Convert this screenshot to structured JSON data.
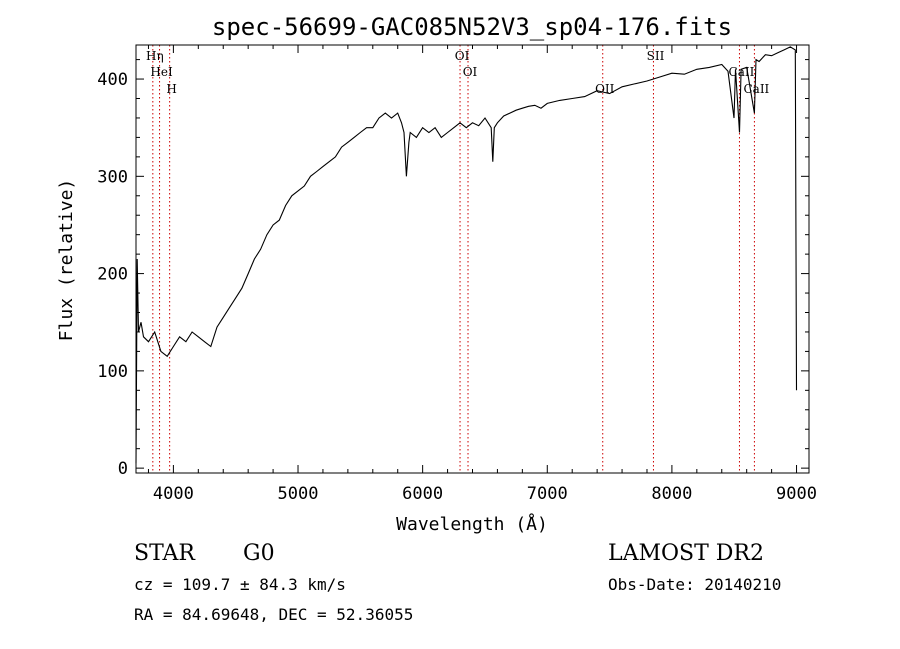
{
  "chart_data": {
    "type": "line",
    "title": "spec-56699-GAC085N52V3_sp04-176.fits",
    "xlabel": "Wavelength (Å)",
    "ylabel": "Flux (relative)",
    "xlim": [
      3700,
      9100
    ],
    "ylim": [
      -5,
      435
    ],
    "xticks": [
      4000,
      5000,
      6000,
      7000,
      8000,
      9000
    ],
    "yticks": [
      0,
      100,
      200,
      300,
      400
    ],
    "xtick_labels": [
      "4000",
      "5000",
      "6000",
      "7000",
      "8000",
      "9000"
    ],
    "ytick_labels": [
      "0",
      "100",
      "200",
      "300",
      "400"
    ],
    "grid": false,
    "series": [
      {
        "color": "#000000",
        "x": [
          3700,
          3710,
          3720,
          3740,
          3760,
          3800,
          3850,
          3900,
          3950,
          4000,
          4050,
          4100,
          4150,
          4200,
          4250,
          4300,
          4350,
          4400,
          4450,
          4500,
          4550,
          4600,
          4650,
          4700,
          4750,
          4800,
          4850,
          4900,
          4950,
          5000,
          5050,
          5100,
          5150,
          5200,
          5250,
          5300,
          5350,
          5400,
          5450,
          5500,
          5550,
          5600,
          5650,
          5700,
          5750,
          5800,
          5830,
          5850,
          5870,
          5890,
          5900,
          5950,
          6000,
          6050,
          6100,
          6150,
          6200,
          6250,
          6300,
          6350,
          6400,
          6450,
          6500,
          6550,
          6563,
          6575,
          6600,
          6650,
          6700,
          6750,
          6800,
          6850,
          6900,
          6950,
          7000,
          7100,
          7200,
          7300,
          7400,
          7500,
          7600,
          7700,
          7800,
          7900,
          8000,
          8100,
          8200,
          8300,
          8400,
          8450,
          8498,
          8510,
          8542,
          8555,
          8600,
          8662,
          8675,
          8700,
          8750,
          8800,
          8850,
          8900,
          8950,
          8990,
          9000
        ],
        "values": [
          5,
          215,
          140,
          150,
          135,
          130,
          140,
          120,
          115,
          125,
          135,
          130,
          140,
          135,
          130,
          125,
          145,
          155,
          165,
          175,
          185,
          200,
          215,
          225,
          240,
          250,
          255,
          270,
          280,
          285,
          290,
          300,
          305,
          310,
          315,
          320,
          330,
          335,
          340,
          345,
          350,
          350,
          360,
          365,
          360,
          365,
          355,
          345,
          300,
          335,
          345,
          340,
          350,
          345,
          350,
          340,
          345,
          350,
          355,
          350,
          355,
          352,
          360,
          350,
          315,
          350,
          355,
          362,
          365,
          368,
          370,
          372,
          373,
          370,
          375,
          378,
          380,
          382,
          388,
          385,
          392,
          395,
          398,
          402,
          406,
          405,
          410,
          412,
          415,
          408,
          360,
          410,
          345,
          410,
          412,
          365,
          420,
          418,
          425,
          424,
          427,
          430,
          433,
          430,
          80
        ]
      }
    ],
    "lines": [
      {
        "wavelength": 3835,
        "label": "Hη"
      },
      {
        "wavelength": 3889,
        "label": "HeI"
      },
      {
        "wavelength": 3970,
        "label": "H"
      },
      {
        "wavelength": 6300,
        "label": "OI"
      },
      {
        "wavelength": 6364,
        "label": "OI"
      },
      {
        "wavelength": 7445,
        "label": "OII"
      },
      {
        "wavelength": 7852,
        "label": "SII"
      },
      {
        "wavelength": 8542,
        "label": "CaII"
      },
      {
        "wavelength": 8662,
        "label": "CaII"
      }
    ],
    "line_color": "#cc0000"
  },
  "info": {
    "object_class": "STAR",
    "subclass": "G0",
    "survey": "LAMOST DR2",
    "cz": "cz = 109.7 ± 84.3 km/s",
    "obs_date": "Obs-Date: 20140210",
    "coords": "RA =  84.69648, DEC =  52.36055"
  }
}
